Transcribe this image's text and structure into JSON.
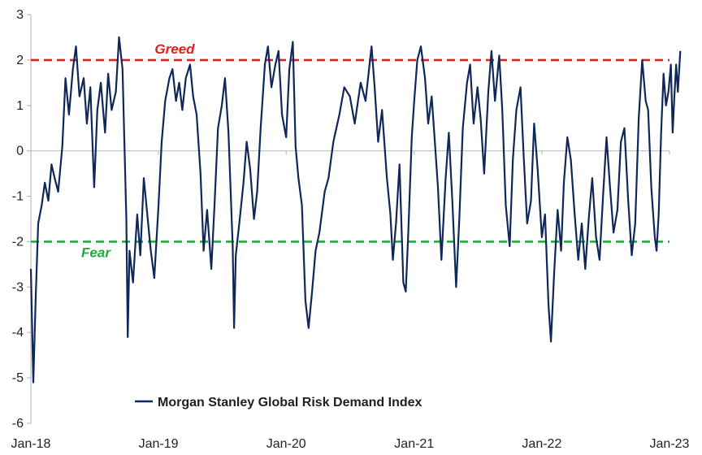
{
  "chart_data": {
    "type": "line",
    "title": "",
    "xlabel": "",
    "ylabel": "",
    "ylim": [
      -6,
      3
    ],
    "yticks": [
      3,
      2,
      1,
      0,
      -1,
      -2,
      -3,
      -4,
      -5,
      -6
    ],
    "ytick_labels": [
      "3",
      "2",
      "1",
      "0",
      "-1",
      "-2",
      "-3",
      "-4",
      "-5",
      "-6"
    ],
    "xlim": [
      "2018-01-01",
      "2023-01-01"
    ],
    "xtick_labels": [
      "Jan-18",
      "Jan-19",
      "Jan-20",
      "Jan-21",
      "Jan-22",
      "Jan-23"
    ],
    "grid": false,
    "legend": {
      "position": "bottom-center",
      "entries": [
        "Morgan Stanley Global Risk Demand Index"
      ]
    },
    "colors": {
      "series": "#10275a",
      "greed": "#e41f1f",
      "fear": "#1aae3b",
      "axis": "#bfbfbf"
    },
    "reference_lines": [
      {
        "label": "Greed",
        "y": 2,
        "color": "#e41f1f"
      },
      {
        "label": "Fear",
        "y": -2,
        "color": "#1aae3b"
      }
    ],
    "series": [
      {
        "name": "Morgan Stanley Global Risk Demand Index",
        "points": [
          [
            "2018-01-01",
            -2.6
          ],
          [
            "2018-01-08",
            -5.1
          ],
          [
            "2018-01-15",
            -3.2
          ],
          [
            "2018-01-22",
            -1.6
          ],
          [
            "2018-02-01",
            -1.2
          ],
          [
            "2018-02-10",
            -0.7
          ],
          [
            "2018-02-20",
            -1.1
          ],
          [
            "2018-03-01",
            -0.3
          ],
          [
            "2018-03-10",
            -0.6
          ],
          [
            "2018-03-20",
            -0.9
          ],
          [
            "2018-04-01",
            0.1
          ],
          [
            "2018-04-10",
            1.6
          ],
          [
            "2018-04-20",
            0.8
          ],
          [
            "2018-05-01",
            1.8
          ],
          [
            "2018-05-10",
            2.3
          ],
          [
            "2018-05-20",
            1.2
          ],
          [
            "2018-06-01",
            1.6
          ],
          [
            "2018-06-10",
            0.6
          ],
          [
            "2018-06-20",
            1.4
          ],
          [
            "2018-07-01",
            -0.8
          ],
          [
            "2018-07-10",
            0.9
          ],
          [
            "2018-07-20",
            1.5
          ],
          [
            "2018-08-01",
            0.4
          ],
          [
            "2018-08-10",
            1.7
          ],
          [
            "2018-08-20",
            0.9
          ],
          [
            "2018-09-01",
            1.3
          ],
          [
            "2018-09-10",
            2.5
          ],
          [
            "2018-09-20",
            1.8
          ],
          [
            "2018-10-01",
            -1.5
          ],
          [
            "2018-10-05",
            -4.1
          ],
          [
            "2018-10-10",
            -2.2
          ],
          [
            "2018-10-20",
            -2.9
          ],
          [
            "2018-11-01",
            -1.4
          ],
          [
            "2018-11-10",
            -2.3
          ],
          [
            "2018-11-20",
            -0.6
          ],
          [
            "2018-12-01",
            -1.5
          ],
          [
            "2018-12-10",
            -2.2
          ],
          [
            "2018-12-20",
            -2.8
          ],
          [
            "2019-01-01",
            -1.2
          ],
          [
            "2019-01-10",
            0.2
          ],
          [
            "2019-01-20",
            1.1
          ],
          [
            "2019-02-01",
            1.6
          ],
          [
            "2019-02-10",
            1.8
          ],
          [
            "2019-02-20",
            1.1
          ],
          [
            "2019-03-01",
            1.5
          ],
          [
            "2019-03-10",
            0.9
          ],
          [
            "2019-03-20",
            1.6
          ],
          [
            "2019-04-01",
            1.9
          ],
          [
            "2019-04-10",
            1.2
          ],
          [
            "2019-04-20",
            0.8
          ],
          [
            "2019-05-01",
            -0.5
          ],
          [
            "2019-05-10",
            -2.2
          ],
          [
            "2019-05-20",
            -1.3
          ],
          [
            "2019-06-01",
            -2.6
          ],
          [
            "2019-06-10",
            -1.2
          ],
          [
            "2019-06-20",
            0.5
          ],
          [
            "2019-07-01",
            1.0
          ],
          [
            "2019-07-10",
            1.6
          ],
          [
            "2019-07-20",
            0.4
          ],
          [
            "2019-08-01",
            -2.1
          ],
          [
            "2019-08-05",
            -3.9
          ],
          [
            "2019-08-10",
            -2.3
          ],
          [
            "2019-08-20",
            -1.6
          ],
          [
            "2019-09-01",
            -0.7
          ],
          [
            "2019-09-10",
            0.2
          ],
          [
            "2019-09-20",
            -0.4
          ],
          [
            "2019-10-01",
            -1.5
          ],
          [
            "2019-10-10",
            -0.9
          ],
          [
            "2019-10-20",
            0.5
          ],
          [
            "2019-11-01",
            1.9
          ],
          [
            "2019-11-10",
            2.3
          ],
          [
            "2019-11-20",
            1.4
          ],
          [
            "2019-12-01",
            1.9
          ],
          [
            "2019-12-10",
            2.2
          ],
          [
            "2019-12-20",
            0.8
          ],
          [
            "2020-01-01",
            0.3
          ],
          [
            "2020-01-10",
            1.8
          ],
          [
            "2020-01-20",
            2.4
          ],
          [
            "2020-01-28",
            0.1
          ],
          [
            "2020-02-05",
            -0.6
          ],
          [
            "2020-02-15",
            -1.2
          ],
          [
            "2020-02-25",
            -3.3
          ],
          [
            "2020-03-05",
            -3.9
          ],
          [
            "2020-03-15",
            -3.1
          ],
          [
            "2020-03-25",
            -2.2
          ],
          [
            "2020-04-05",
            -1.8
          ],
          [
            "2020-04-20",
            -0.9
          ],
          [
            "2020-05-01",
            -0.6
          ],
          [
            "2020-05-15",
            0.2
          ],
          [
            "2020-06-01",
            0.8
          ],
          [
            "2020-06-15",
            1.4
          ],
          [
            "2020-07-01",
            1.2
          ],
          [
            "2020-07-15",
            0.6
          ],
          [
            "2020-08-01",
            1.5
          ],
          [
            "2020-08-15",
            1.1
          ],
          [
            "2020-09-01",
            2.3
          ],
          [
            "2020-09-10",
            1.4
          ],
          [
            "2020-09-20",
            0.2
          ],
          [
            "2020-10-01",
            0.9
          ],
          [
            "2020-10-15",
            -0.6
          ],
          [
            "2020-10-25",
            -1.4
          ],
          [
            "2020-11-01",
            -2.4
          ],
          [
            "2020-11-10",
            -1.6
          ],
          [
            "2020-11-20",
            -0.3
          ],
          [
            "2020-12-01",
            -2.9
          ],
          [
            "2020-12-08",
            -3.1
          ],
          [
            "2020-12-15",
            -1.8
          ],
          [
            "2020-12-25",
            0.3
          ],
          [
            "2021-01-01",
            1.1
          ],
          [
            "2021-01-10",
            2.0
          ],
          [
            "2021-01-20",
            2.3
          ],
          [
            "2021-02-01",
            1.6
          ],
          [
            "2021-02-10",
            0.6
          ],
          [
            "2021-02-20",
            1.2
          ],
          [
            "2021-03-01",
            0.2
          ],
          [
            "2021-03-10",
            -0.8
          ],
          [
            "2021-03-20",
            -2.4
          ],
          [
            "2021-04-01",
            -0.6
          ],
          [
            "2021-04-10",
            0.4
          ],
          [
            "2021-04-20",
            -1.1
          ],
          [
            "2021-05-01",
            -3.0
          ],
          [
            "2021-05-10",
            -1.5
          ],
          [
            "2021-05-20",
            0.5
          ],
          [
            "2021-06-01",
            1.5
          ],
          [
            "2021-06-10",
            1.9
          ],
          [
            "2021-06-20",
            0.6
          ],
          [
            "2021-07-01",
            1.4
          ],
          [
            "2021-07-10",
            0.7
          ],
          [
            "2021-07-20",
            -0.5
          ],
          [
            "2021-08-01",
            1.3
          ],
          [
            "2021-08-10",
            2.2
          ],
          [
            "2021-08-20",
            1.1
          ],
          [
            "2021-09-01",
            2.1
          ],
          [
            "2021-09-10",
            0.9
          ],
          [
            "2021-09-20",
            -1.2
          ],
          [
            "2021-10-01",
            -2.1
          ],
          [
            "2021-10-10",
            -0.2
          ],
          [
            "2021-10-20",
            0.9
          ],
          [
            "2021-11-01",
            1.4
          ],
          [
            "2021-11-10",
            -0.1
          ],
          [
            "2021-11-20",
            -1.6
          ],
          [
            "2021-12-01",
            -1.1
          ],
          [
            "2021-12-10",
            0.6
          ],
          [
            "2021-12-20",
            -0.4
          ],
          [
            "2022-01-01",
            -1.9
          ],
          [
            "2022-01-10",
            -1.4
          ],
          [
            "2022-01-20",
            -3.4
          ],
          [
            "2022-01-27",
            -4.2
          ],
          [
            "2022-02-05",
            -2.7
          ],
          [
            "2022-02-15",
            -1.3
          ],
          [
            "2022-02-25",
            -2.2
          ],
          [
            "2022-03-05",
            -0.7
          ],
          [
            "2022-03-15",
            0.3
          ],
          [
            "2022-03-25",
            -0.2
          ],
          [
            "2022-04-05",
            -1.4
          ],
          [
            "2022-04-15",
            -2.4
          ],
          [
            "2022-04-25",
            -1.6
          ],
          [
            "2022-05-05",
            -2.6
          ],
          [
            "2022-05-15",
            -1.5
          ],
          [
            "2022-05-25",
            -0.6
          ],
          [
            "2022-06-05",
            -1.9
          ],
          [
            "2022-06-15",
            -2.4
          ],
          [
            "2022-06-25",
            -1.0
          ],
          [
            "2022-07-05",
            0.3
          ],
          [
            "2022-07-15",
            -0.8
          ],
          [
            "2022-07-25",
            -1.8
          ],
          [
            "2022-08-05",
            -1.3
          ],
          [
            "2022-08-15",
            0.2
          ],
          [
            "2022-08-25",
            0.5
          ],
          [
            "2022-09-05",
            -1.1
          ],
          [
            "2022-09-15",
            -2.3
          ],
          [
            "2022-09-25",
            -1.6
          ],
          [
            "2022-10-05",
            0.7
          ],
          [
            "2022-10-15",
            2.0
          ],
          [
            "2022-10-25",
            1.1
          ],
          [
            "2022-11-01",
            0.9
          ],
          [
            "2022-11-10",
            -0.8
          ],
          [
            "2022-11-20",
            -1.9
          ],
          [
            "2022-11-25",
            -2.2
          ],
          [
            "2022-12-01",
            -1.4
          ],
          [
            "2022-12-08",
            0.4
          ],
          [
            "2022-12-15",
            1.7
          ],
          [
            "2022-12-22",
            1.0
          ],
          [
            "2022-12-29",
            1.3
          ],
          [
            "2023-01-05",
            1.9
          ],
          [
            "2023-01-10",
            0.4
          ],
          [
            "2023-01-15",
            1.2
          ],
          [
            "2023-01-20",
            1.9
          ],
          [
            "2023-01-25",
            1.3
          ],
          [
            "2023-02-01",
            2.2
          ]
        ]
      }
    ]
  }
}
